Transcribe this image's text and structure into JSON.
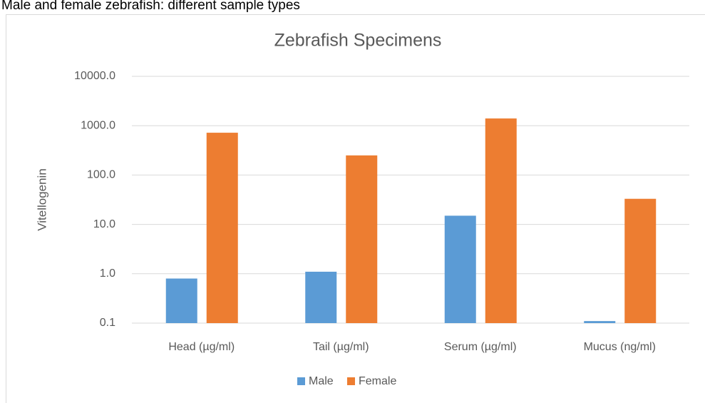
{
  "header": "Male and female zebrafish: different sample types",
  "chart_data": {
    "type": "bar",
    "title": "Zebrafish Specimens",
    "y_label": "Vitellogenin",
    "categories": [
      "Head (µg/ml)",
      "Tail (µg/ml)",
      "Serum (µg/ml)",
      "Mucus (ng/ml)"
    ],
    "series": [
      {
        "name": "Male",
        "color": "#5b9bd5",
        "values": [
          0.8,
          1.1,
          15,
          0.11
        ]
      },
      {
        "name": "Female",
        "color": "#ed7d31",
        "values": [
          720,
          250,
          1400,
          33
        ]
      }
    ],
    "ylim": [
      0.1,
      10000
    ],
    "y_scale": "log",
    "yticks": [
      0.1,
      {
        "value": 1,
        "label": "1.0"
      },
      {
        "value": 10,
        "label": "10.0"
      },
      {
        "value": 100,
        "label": "100.0"
      },
      {
        "value": 1000,
        "label": "1000.0"
      },
      {
        "value": 10000,
        "label": "10000.0"
      }
    ],
    "grid": true,
    "legend": "bottom"
  }
}
